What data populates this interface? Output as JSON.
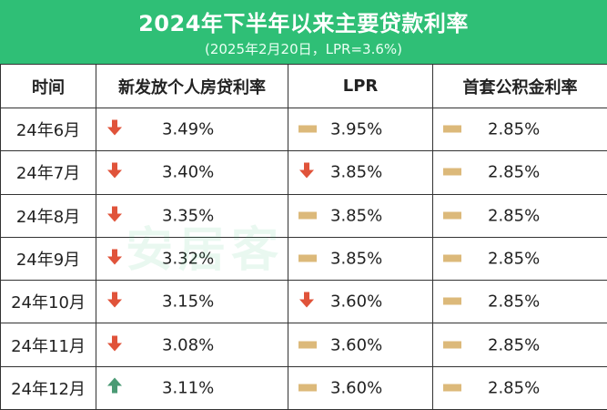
{
  "header": {
    "title": "2024年下半年以来主要贷款利率",
    "subtitle": "(2025年2月20日，LPR=3.6%)"
  },
  "colors": {
    "header_bg": "#2fbf76",
    "down": "#e0533a",
    "up": "#4a9a74",
    "flat": "#dcb97a"
  },
  "table": {
    "columns": [
      "时间",
      "新发放个人房贷利率",
      "LPR",
      "首套公积金利率"
    ],
    "rows": [
      {
        "period": "24年6月",
        "mortgage": {
          "value": "3.49%",
          "icon": "arrow-down-icon"
        },
        "lpr": {
          "value": "3.95%",
          "icon": "dash-icon"
        },
        "fund": {
          "value": "2.85%",
          "icon": "dash-icon"
        }
      },
      {
        "period": "24年7月",
        "mortgage": {
          "value": "3.40%",
          "icon": "arrow-down-icon"
        },
        "lpr": {
          "value": "3.85%",
          "icon": "arrow-down-icon"
        },
        "fund": {
          "value": "2.85%",
          "icon": "dash-icon"
        }
      },
      {
        "period": "24年8月",
        "mortgage": {
          "value": "3.35%",
          "icon": "arrow-down-icon"
        },
        "lpr": {
          "value": "3.85%",
          "icon": "dash-icon"
        },
        "fund": {
          "value": "2.85%",
          "icon": "dash-icon"
        }
      },
      {
        "period": "24年9月",
        "mortgage": {
          "value": "3.32%",
          "icon": "arrow-down-icon"
        },
        "lpr": {
          "value": "3.85%",
          "icon": "dash-icon"
        },
        "fund": {
          "value": "2.85%",
          "icon": "dash-icon"
        }
      },
      {
        "period": "24年10月",
        "mortgage": {
          "value": "3.15%",
          "icon": "arrow-down-icon"
        },
        "lpr": {
          "value": "3.60%",
          "icon": "arrow-down-icon"
        },
        "fund": {
          "value": "2.85%",
          "icon": "dash-icon"
        }
      },
      {
        "period": "24年11月",
        "mortgage": {
          "value": "3.08%",
          "icon": "arrow-down-icon"
        },
        "lpr": {
          "value": "3.60%",
          "icon": "dash-icon"
        },
        "fund": {
          "value": "2.85%",
          "icon": "dash-icon"
        }
      },
      {
        "period": "24年12月",
        "mortgage": {
          "value": "3.11%",
          "icon": "arrow-up-icon"
        },
        "lpr": {
          "value": "3.60%",
          "icon": "dash-icon"
        },
        "fund": {
          "value": "2.85%",
          "icon": "dash-icon"
        }
      }
    ]
  },
  "watermark": {
    "text": "安居客"
  }
}
